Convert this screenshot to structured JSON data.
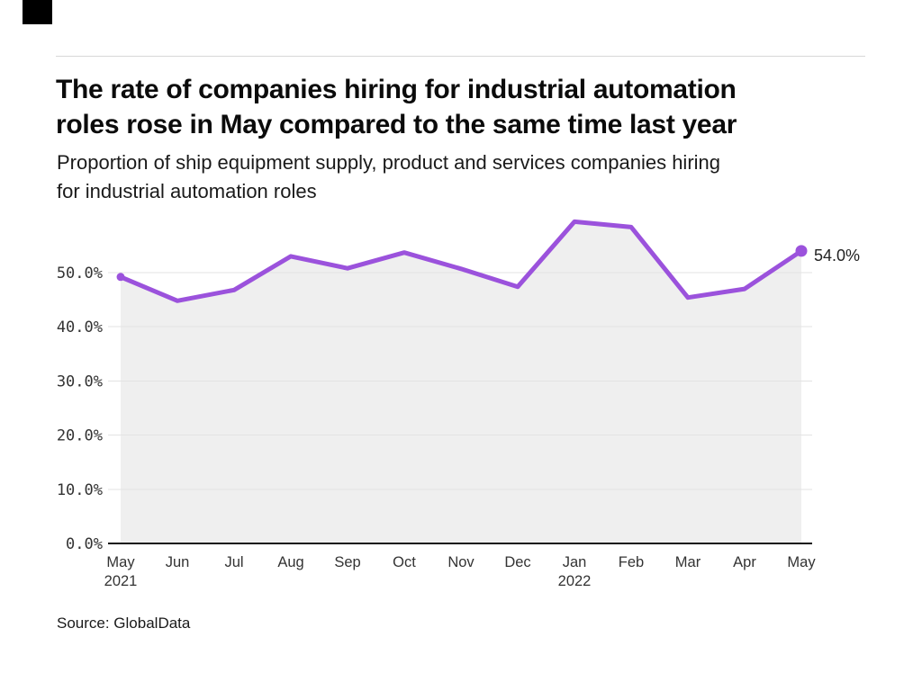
{
  "brand": {
    "mark_color": "#000000"
  },
  "header": {
    "title": "The rate of companies hiring for industrial automation roles rose in May compared to the same time last year",
    "title_lines": [
      "The rate of companies hiring for industrial automation",
      "roles rose in May compared to the same time last year"
    ],
    "subtitle": "Proportion of ship equipment supply, product and services companies hiring for industrial automation roles",
    "subtitle_lines": [
      "Proportion of ship equipment supply, product and services companies hiring",
      "for industrial automation roles"
    ]
  },
  "chart_data": {
    "type": "line",
    "title": "The rate of companies hiring for industrial automation roles rose in May compared to the same time last year",
    "subtitle": "Proportion of ship equipment supply, product and services companies hiring for industrial automation roles",
    "x": [
      "May 2021",
      "Jun 2021",
      "Jul 2021",
      "Aug 2021",
      "Sep 2021",
      "Oct 2021",
      "Nov 2021",
      "Dec 2021",
      "Jan 2022",
      "Feb 2022",
      "Mar 2022",
      "Apr 2022",
      "May 2022"
    ],
    "categories": [
      "May",
      "Jun",
      "Jul",
      "Aug",
      "Sep",
      "Oct",
      "Nov",
      "Dec",
      "Jan",
      "Feb",
      "Mar",
      "Apr",
      "May"
    ],
    "year_markers": [
      {
        "index": 0,
        "label": "2021"
      },
      {
        "index": 8,
        "label": "2022"
      }
    ],
    "series": [
      {
        "name": "Proportion of companies hiring for industrial automation roles",
        "values": [
          49.2,
          44.8,
          46.8,
          53.0,
          50.8,
          53.7,
          50.7,
          47.4,
          59.4,
          58.4,
          45.4,
          47.0,
          54.0
        ]
      }
    ],
    "end_label": "54.0%",
    "yticks": [
      {
        "value": 0,
        "label": "0.0%"
      },
      {
        "value": 10,
        "label": "10.0%"
      },
      {
        "value": 20,
        "label": "20.0%"
      },
      {
        "value": 30,
        "label": "30.0%"
      },
      {
        "value": 40,
        "label": "40.0%"
      },
      {
        "value": 50,
        "label": "50.0%"
      }
    ],
    "ylim": [
      0,
      62
    ],
    "xlabel": "",
    "ylabel": "",
    "grid": true,
    "legend": false,
    "colors": {
      "line": "#9b52dc",
      "marker": "#9b52dc",
      "area_fill": "#efefef",
      "grid_line": "#e3e3e3",
      "axis_line": "#141414",
      "tick_text": "#333333"
    }
  },
  "source": {
    "label": "Source: GlobalData"
  }
}
